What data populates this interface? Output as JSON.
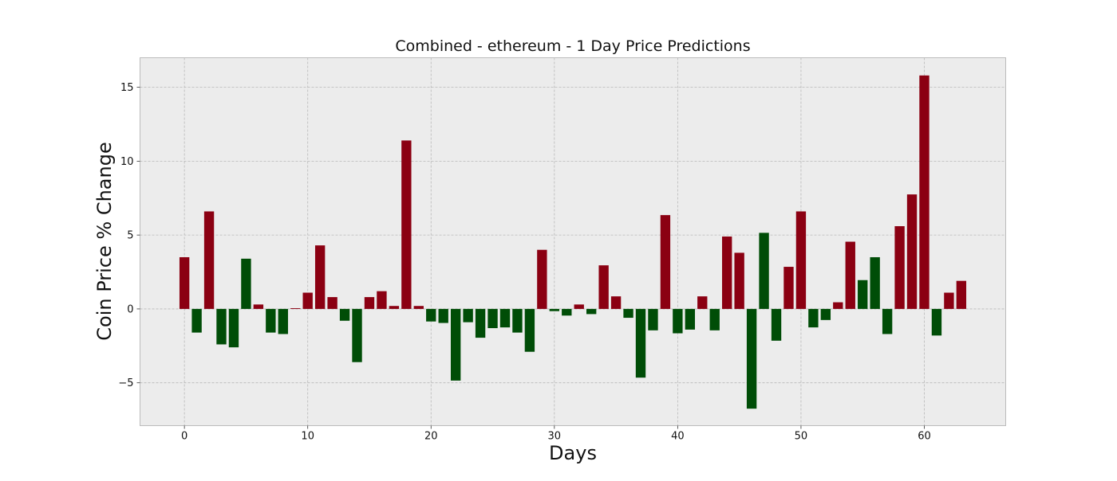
{
  "chart_data": {
    "type": "bar",
    "title": "Combined - ethereum - 1 Day Price Predictions",
    "xlabel": "Days",
    "ylabel": "Coin Price % Change",
    "xlim": [
      -3.6,
      66.6
    ],
    "ylim": [
      -7.9,
      17.0
    ],
    "xticks": [
      0,
      10,
      20,
      30,
      40,
      50,
      60
    ],
    "yticks": [
      -5,
      0,
      5,
      10,
      15
    ],
    "grid": true,
    "colors": {
      "up": "#8b0012",
      "down": "#004d07",
      "plot_bg": "#ececec",
      "grid": "#b8b8b8",
      "frame": "#bcbcbc"
    },
    "x": [
      0,
      1,
      2,
      3,
      4,
      5,
      6,
      7,
      8,
      9,
      10,
      11,
      12,
      13,
      14,
      15,
      16,
      17,
      18,
      19,
      20,
      21,
      22,
      23,
      24,
      25,
      26,
      27,
      28,
      29,
      30,
      31,
      32,
      33,
      34,
      35,
      36,
      37,
      38,
      39,
      40,
      41,
      42,
      43,
      44,
      45,
      46,
      47,
      48,
      49,
      50,
      51,
      52,
      53,
      54,
      55,
      56,
      57,
      58,
      59,
      60,
      61,
      62,
      63
    ],
    "values": [
      3.5,
      -1.6,
      6.6,
      -2.4,
      -2.6,
      3.4,
      0.3,
      -1.6,
      -1.7,
      0.05,
      1.1,
      4.3,
      0.8,
      -0.8,
      -3.6,
      0.8,
      1.2,
      0.2,
      11.4,
      0.2,
      -0.85,
      -0.95,
      -4.85,
      -0.9,
      -1.95,
      -1.3,
      -1.25,
      -1.6,
      -2.9,
      4.0,
      -0.15,
      -0.45,
      0.3,
      -0.35,
      2.95,
      0.85,
      -0.6,
      -4.65,
      -1.45,
      6.35,
      -1.65,
      -1.4,
      0.85,
      -1.45,
      4.9,
      3.8,
      -6.75,
      5.15,
      -2.15,
      2.85,
      6.6,
      -1.25,
      -0.75,
      0.45,
      4.55,
      1.95,
      3.5,
      -1.7,
      5.6,
      7.75,
      15.8,
      -1.8,
      1.1,
      1.9
    ],
    "series_color": [
      "up",
      "down",
      "up",
      "down",
      "down",
      "down",
      "up",
      "down",
      "down",
      "up",
      "up",
      "up",
      "up",
      "down",
      "down",
      "up",
      "up",
      "up",
      "up",
      "up",
      "down",
      "down",
      "down",
      "down",
      "down",
      "down",
      "down",
      "down",
      "down",
      "up",
      "down",
      "down",
      "up",
      "down",
      "up",
      "up",
      "down",
      "down",
      "down",
      "up",
      "down",
      "down",
      "up",
      "down",
      "up",
      "up",
      "down",
      "down",
      "down",
      "up",
      "up",
      "down",
      "down",
      "up",
      "up",
      "down",
      "down",
      "down",
      "up",
      "up",
      "up",
      "down",
      "up",
      "up"
    ]
  }
}
